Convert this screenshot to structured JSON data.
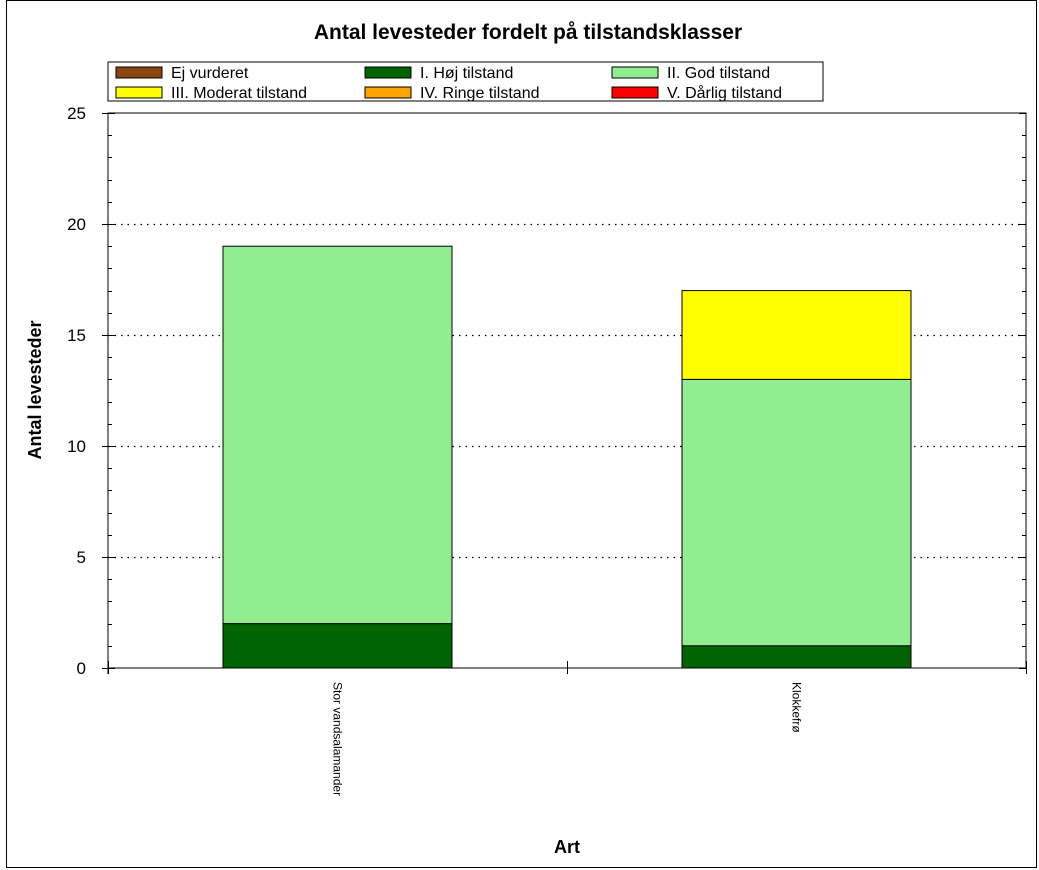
{
  "chart_data": {
    "type": "bar",
    "stacked": true,
    "title": "Antal levesteder fordelt på tilstandsklasser",
    "xlabel": "Art",
    "ylabel": "Antal levesteder",
    "ylim": [
      0,
      25
    ],
    "yticks": [
      0,
      5,
      10,
      15,
      20,
      25
    ],
    "grid": "horizontal-dotted",
    "legend_position": "top",
    "categories": [
      "Stor vandsalamander",
      "Klokkefrø"
    ],
    "series": [
      {
        "name": "Ej vurderet",
        "color": "#8B4513",
        "values": [
          0,
          0
        ]
      },
      {
        "name": "I. Høj tilstand",
        "color": "#006400",
        "values": [
          2,
          1
        ]
      },
      {
        "name": "II. God tilstand",
        "color": "#90EE90",
        "values": [
          17,
          12
        ]
      },
      {
        "name": "III. Moderat tilstand",
        "color": "#FFFF00",
        "values": [
          0,
          4
        ]
      },
      {
        "name": "IV. Ringe tilstand",
        "color": "#FFA500",
        "values": [
          0,
          0
        ]
      },
      {
        "name": "V. Dårlig tilstand",
        "color": "#FF0000",
        "values": [
          0,
          0
        ]
      }
    ]
  }
}
